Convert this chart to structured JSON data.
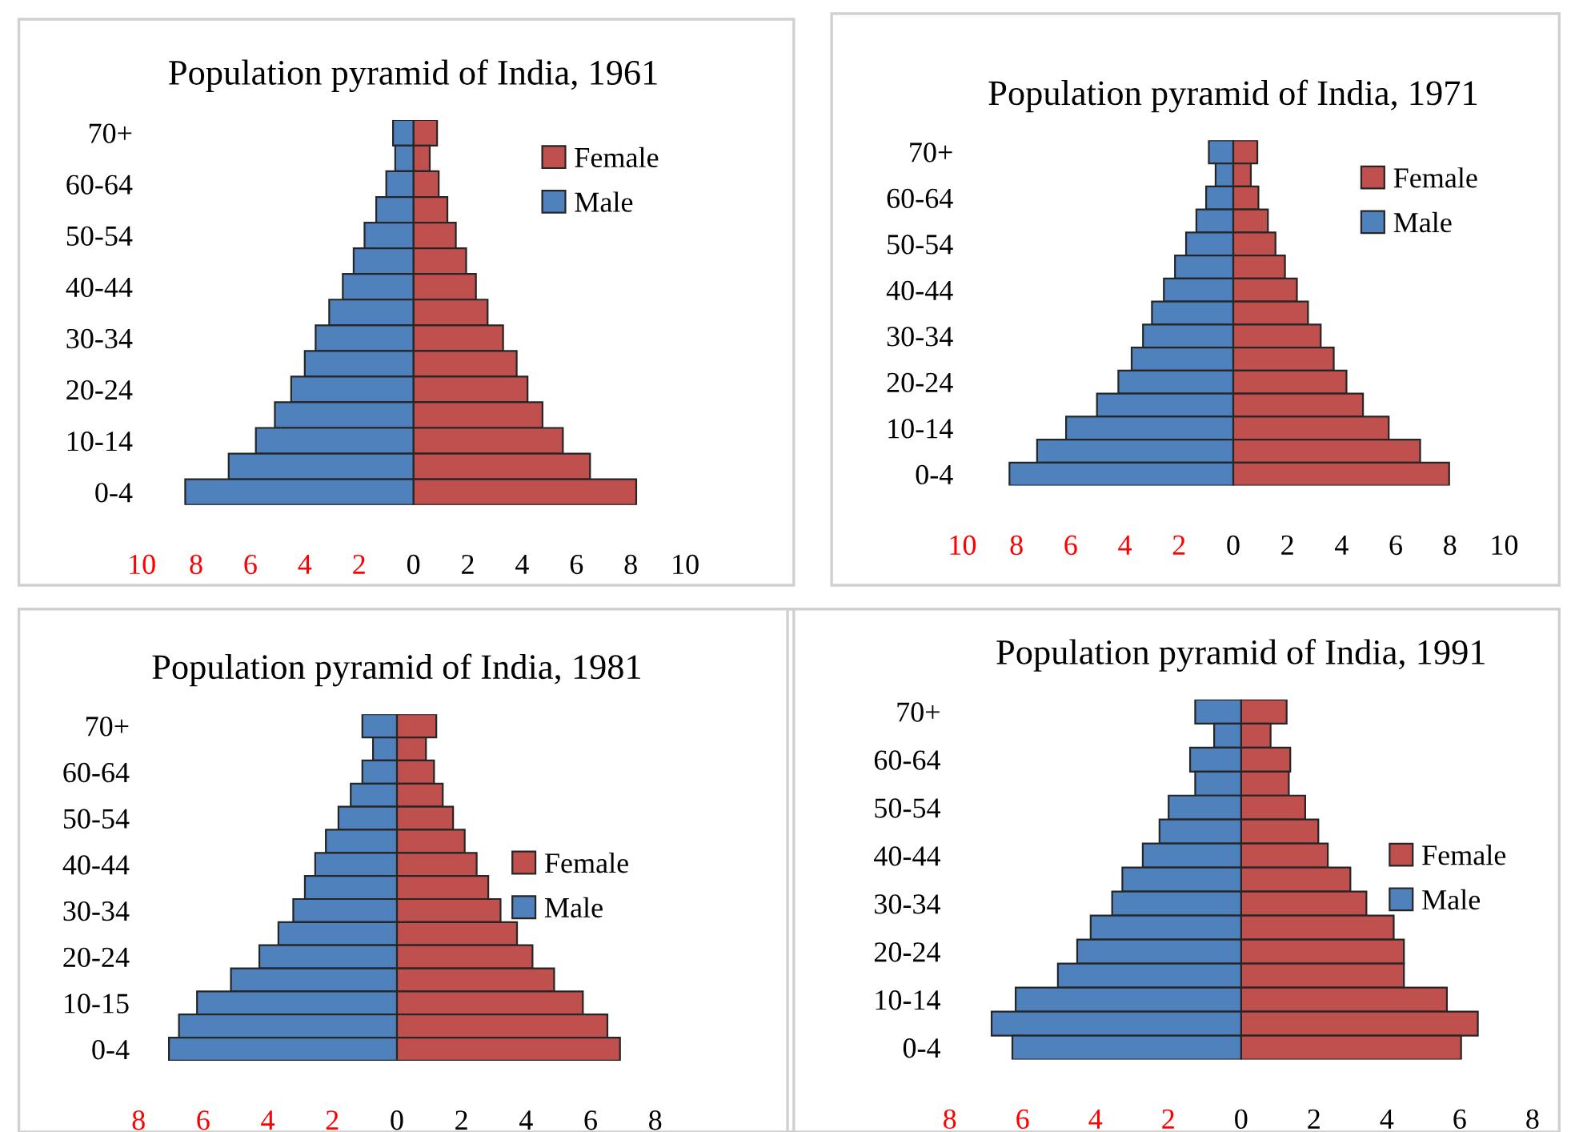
{
  "chart_data": [
    {
      "type": "bar",
      "orientation": "horizontal",
      "title": "Population pyramid of India, 1961",
      "legend": "top right",
      "stacked": true,
      "categories": [
        "70+",
        null,
        "60-64",
        null,
        "50-54",
        null,
        "40-44",
        null,
        "30-34",
        null,
        "20-24",
        null,
        "10-14",
        null,
        "0-4"
      ],
      "xlim": [
        -10,
        10
      ],
      "xticks": [
        {
          "value": -10,
          "label": "10"
        },
        {
          "value": -8,
          "label": "8"
        },
        {
          "value": -6,
          "label": "6"
        },
        {
          "value": -4,
          "label": "4"
        },
        {
          "value": -2,
          "label": "2"
        },
        0,
        2,
        4,
        6,
        8,
        10
      ],
      "series": [
        {
          "name": "Female",
          "color": "#c0504d",
          "values": [
            0.87,
            0.6,
            0.93,
            1.25,
            1.56,
            1.94,
            2.3,
            2.73,
            3.3,
            3.8,
            4.2,
            4.75,
            5.5,
            6.5,
            8.2
          ]
        },
        {
          "name": "Male",
          "color": "#4f81bd",
          "values": [
            -0.75,
            -0.67,
            -1.0,
            -1.37,
            -1.8,
            -2.2,
            -2.6,
            -3.1,
            -3.6,
            -4.0,
            -4.5,
            -5.1,
            -5.8,
            -6.8,
            -8.4
          ]
        }
      ]
    },
    {
      "type": "bar",
      "orientation": "horizontal",
      "title": "Population pyramid of India, 1971",
      "legend": "top right",
      "stacked": true,
      "categories": [
        "70+",
        null,
        "60-64",
        null,
        "50-54",
        null,
        "40-44",
        null,
        "30-34",
        null,
        "20-24",
        null,
        "10-14",
        null,
        "0-4"
      ],
      "xlim": [
        -10,
        10
      ],
      "xticks": [
        {
          "value": -10,
          "label": "10"
        },
        {
          "value": -8,
          "label": "8"
        },
        {
          "value": -6,
          "label": "6"
        },
        {
          "value": -4,
          "label": "4"
        },
        {
          "value": -2,
          "label": "2"
        },
        0,
        2,
        4,
        6,
        8,
        10
      ],
      "series": [
        {
          "name": "Female",
          "color": "#c0504d",
          "values": [
            0.89,
            0.65,
            0.93,
            1.28,
            1.56,
            1.91,
            2.35,
            2.76,
            3.23,
            3.71,
            4.18,
            4.79,
            5.74,
            6.9,
            7.97
          ]
        },
        {
          "name": "Male",
          "color": "#4f81bd",
          "values": [
            -0.9,
            -0.65,
            -1.0,
            -1.36,
            -1.74,
            -2.15,
            -2.56,
            -3.0,
            -3.33,
            -3.75,
            -4.24,
            -5.03,
            -6.17,
            -7.24,
            -8.26
          ]
        }
      ]
    },
    {
      "type": "bar",
      "orientation": "horizontal",
      "title": "Population pyramid of India, 1981",
      "legend": "right",
      "stacked": true,
      "categories": [
        "70+",
        null,
        "60-64",
        null,
        "50-54",
        null,
        "40-44",
        null,
        "30-34",
        null,
        "20-24",
        null,
        "10-15",
        null,
        "0-4"
      ],
      "xlim": [
        -8,
        8
      ],
      "xticks": [
        {
          "value": -8,
          "label": "8"
        },
        {
          "value": -6,
          "label": "6"
        },
        {
          "value": -4,
          "label": "4"
        },
        {
          "value": -2,
          "label": "2"
        },
        0,
        2,
        4,
        6,
        8
      ],
      "series": [
        {
          "name": "Female",
          "color": "#c0504d",
          "values": [
            1.22,
            0.9,
            1.15,
            1.42,
            1.74,
            2.1,
            2.47,
            2.83,
            3.21,
            3.72,
            4.2,
            4.87,
            5.76,
            6.52,
            6.91
          ]
        },
        {
          "name": "Male",
          "color": "#4f81bd",
          "values": [
            -1.07,
            -0.74,
            -1.07,
            -1.43,
            -1.81,
            -2.2,
            -2.53,
            -2.85,
            -3.21,
            -3.67,
            -4.26,
            -5.14,
            -6.19,
            -6.75,
            -7.06
          ]
        }
      ]
    },
    {
      "type": "bar",
      "orientation": "horizontal",
      "title": "Population pyramid of India, 1991",
      "legend": "right",
      "stacked": true,
      "categories": [
        "70+",
        null,
        "60-64",
        null,
        "50-54",
        null,
        "40-44",
        null,
        "30-34",
        null,
        "20-24",
        null,
        "10-14",
        null,
        "0-4"
      ],
      "xlim": [
        -8,
        8
      ],
      "xticks": [
        {
          "value": -8,
          "label": "8"
        },
        {
          "value": -6,
          "label": "6"
        },
        {
          "value": -4,
          "label": "4"
        },
        {
          "value": -2,
          "label": "2"
        },
        0,
        2,
        4,
        6,
        8
      ],
      "series": [
        {
          "name": "Female",
          "color": "#c0504d",
          "values": [
            1.25,
            0.81,
            1.35,
            1.31,
            1.76,
            2.12,
            2.38,
            3.0,
            3.44,
            4.19,
            4.47,
            4.47,
            5.65,
            6.5,
            6.04
          ]
        },
        {
          "name": "Male",
          "color": "#4f81bd",
          "values": [
            -1.26,
            -0.74,
            -1.4,
            -1.26,
            -1.99,
            -2.24,
            -2.7,
            -3.26,
            -3.54,
            -4.13,
            -4.5,
            -5.03,
            -6.19,
            -6.85,
            -6.28
          ]
        }
      ]
    }
  ]
}
